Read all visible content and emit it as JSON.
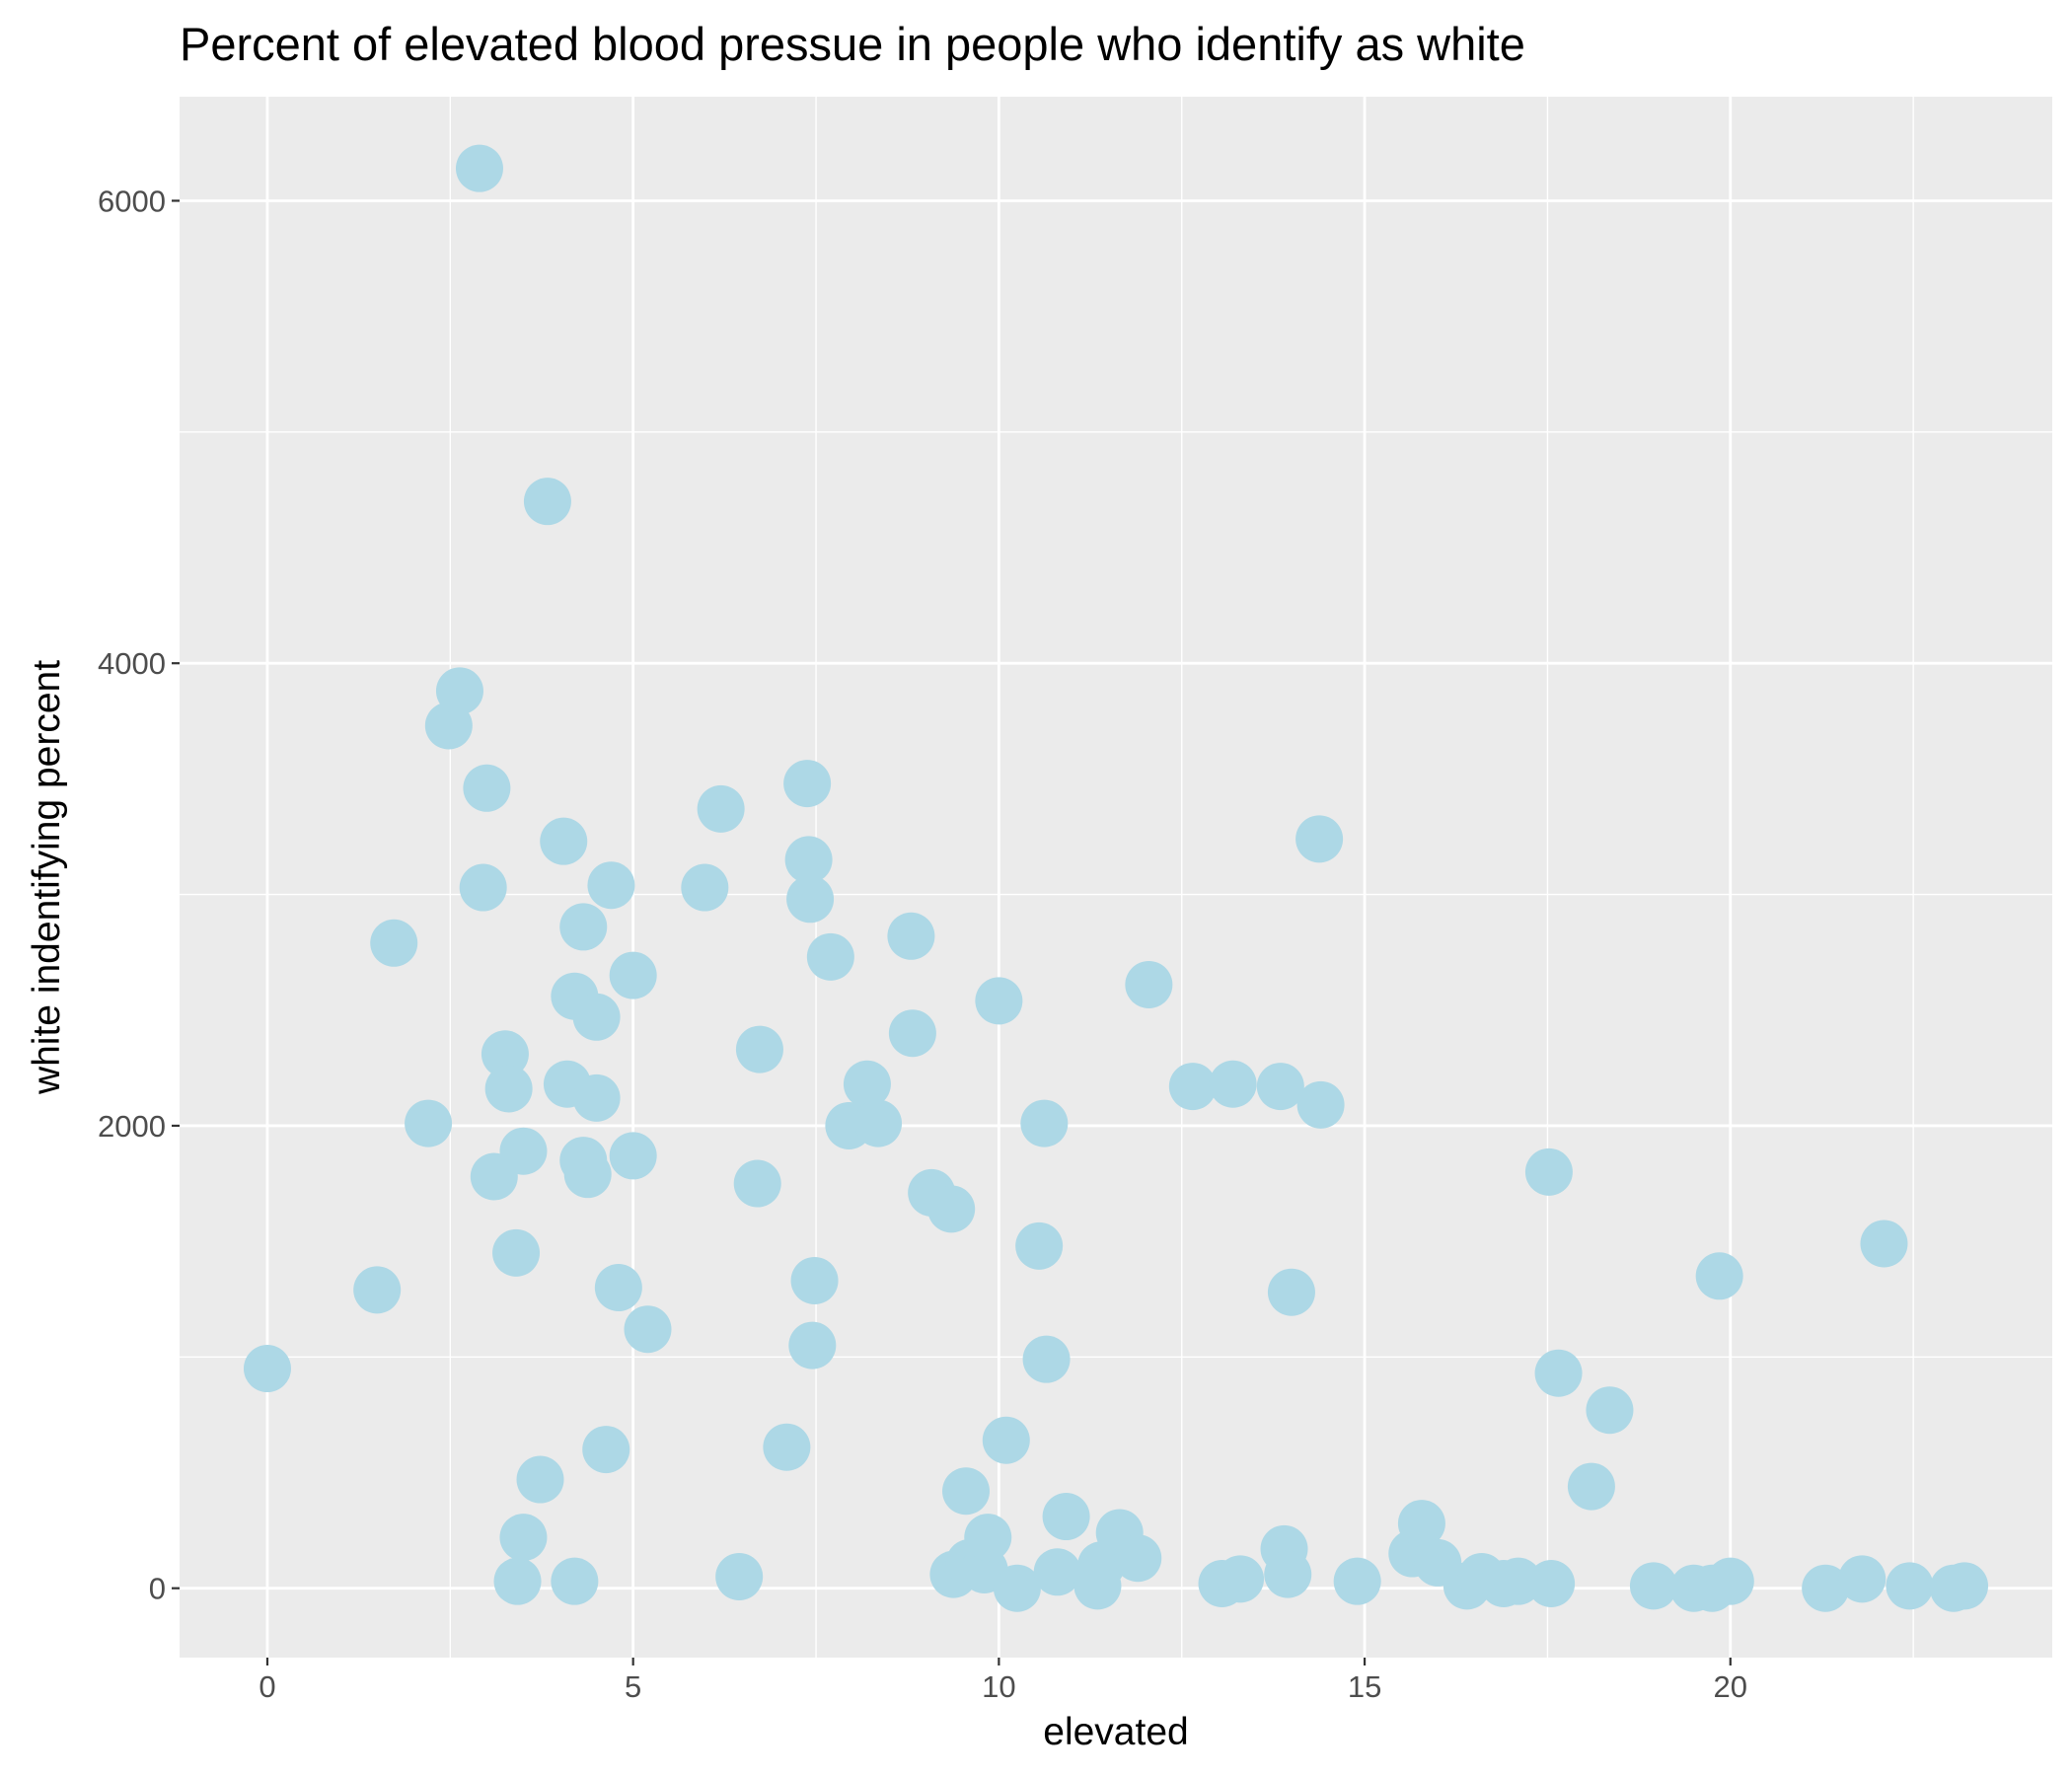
{
  "chart_data": {
    "type": "scatter",
    "title": "Percent of elevated blood pressue in people who identify as white",
    "xlabel": "elevated",
    "ylabel": "white indentifying percent",
    "xlim": [
      -1.2,
      24.4
    ],
    "ylim": [
      -300,
      6450
    ],
    "x_ticks": [
      0,
      5,
      10,
      15,
      20
    ],
    "y_ticks": [
      0,
      2000,
      4000,
      6000
    ],
    "x_tick_labels": [
      "0",
      "5",
      "10",
      "15",
      "20"
    ],
    "y_tick_labels": [
      "0",
      "2000",
      "4000",
      "6000"
    ],
    "grid": true,
    "legend": "none",
    "colors": {
      "panel": "#ebebeb",
      "grid": "#ffffff",
      "point": "#add8e6",
      "tick_text": "#4d4d4d"
    },
    "points": [
      {
        "x": 0.0,
        "y": 950
      },
      {
        "x": 1.5,
        "y": 1290
      },
      {
        "x": 1.73,
        "y": 2790
      },
      {
        "x": 2.2,
        "y": 2010
      },
      {
        "x": 2.48,
        "y": 3730
      },
      {
        "x": 2.63,
        "y": 3880
      },
      {
        "x": 2.9,
        "y": 6140
      },
      {
        "x": 2.95,
        "y": 3030
      },
      {
        "x": 3.0,
        "y": 3460
      },
      {
        "x": 3.1,
        "y": 1780
      },
      {
        "x": 3.25,
        "y": 2310
      },
      {
        "x": 3.3,
        "y": 2160
      },
      {
        "x": 3.4,
        "y": 1450
      },
      {
        "x": 3.42,
        "y": 30
      },
      {
        "x": 3.5,
        "y": 1890
      },
      {
        "x": 3.5,
        "y": 220
      },
      {
        "x": 3.73,
        "y": 470
      },
      {
        "x": 3.83,
        "y": 4700
      },
      {
        "x": 4.05,
        "y": 3230
      },
      {
        "x": 4.1,
        "y": 2180
      },
      {
        "x": 4.2,
        "y": 2560
      },
      {
        "x": 4.2,
        "y": 30
      },
      {
        "x": 4.32,
        "y": 2860
      },
      {
        "x": 4.32,
        "y": 1850
      },
      {
        "x": 4.38,
        "y": 1790
      },
      {
        "x": 4.5,
        "y": 2470
      },
      {
        "x": 4.5,
        "y": 2120
      },
      {
        "x": 4.63,
        "y": 600
      },
      {
        "x": 4.7,
        "y": 3040
      },
      {
        "x": 4.8,
        "y": 1300
      },
      {
        "x": 5.0,
        "y": 2650
      },
      {
        "x": 5.0,
        "y": 1870
      },
      {
        "x": 5.2,
        "y": 1120
      },
      {
        "x": 5.98,
        "y": 3030
      },
      {
        "x": 6.2,
        "y": 3370
      },
      {
        "x": 6.45,
        "y": 50
      },
      {
        "x": 6.7,
        "y": 1750
      },
      {
        "x": 6.73,
        "y": 2330
      },
      {
        "x": 7.1,
        "y": 610
      },
      {
        "x": 7.38,
        "y": 3480
      },
      {
        "x": 7.4,
        "y": 3150
      },
      {
        "x": 7.42,
        "y": 2980
      },
      {
        "x": 7.45,
        "y": 1050
      },
      {
        "x": 7.48,
        "y": 1330
      },
      {
        "x": 7.7,
        "y": 2730
      },
      {
        "x": 7.95,
        "y": 2000
      },
      {
        "x": 8.2,
        "y": 2180
      },
      {
        "x": 8.35,
        "y": 2010
      },
      {
        "x": 8.8,
        "y": 2820
      },
      {
        "x": 8.82,
        "y": 2400
      },
      {
        "x": 9.08,
        "y": 1710
      },
      {
        "x": 9.35,
        "y": 1640
      },
      {
        "x": 9.38,
        "y": 60
      },
      {
        "x": 9.55,
        "y": 420
      },
      {
        "x": 9.6,
        "y": 110
      },
      {
        "x": 9.8,
        "y": 80
      },
      {
        "x": 9.85,
        "y": 220
      },
      {
        "x": 10.0,
        "y": 2540
      },
      {
        "x": 10.1,
        "y": 640
      },
      {
        "x": 10.25,
        "y": 0
      },
      {
        "x": 10.55,
        "y": 1480
      },
      {
        "x": 10.62,
        "y": 2010
      },
      {
        "x": 10.65,
        "y": 990
      },
      {
        "x": 10.8,
        "y": 70
      },
      {
        "x": 10.92,
        "y": 310
      },
      {
        "x": 11.35,
        "y": 10
      },
      {
        "x": 11.4,
        "y": 100
      },
      {
        "x": 11.65,
        "y": 240
      },
      {
        "x": 11.9,
        "y": 130
      },
      {
        "x": 12.05,
        "y": 2610
      },
      {
        "x": 12.65,
        "y": 2170
      },
      {
        "x": 13.05,
        "y": 20
      },
      {
        "x": 13.2,
        "y": 2180
      },
      {
        "x": 13.3,
        "y": 40
      },
      {
        "x": 13.85,
        "y": 2170
      },
      {
        "x": 13.9,
        "y": 170
      },
      {
        "x": 13.95,
        "y": 60
      },
      {
        "x": 14.0,
        "y": 1280
      },
      {
        "x": 14.38,
        "y": 3240
      },
      {
        "x": 14.4,
        "y": 2090
      },
      {
        "x": 14.9,
        "y": 30
      },
      {
        "x": 15.65,
        "y": 150
      },
      {
        "x": 15.78,
        "y": 280
      },
      {
        "x": 16.0,
        "y": 110
      },
      {
        "x": 16.4,
        "y": 10
      },
      {
        "x": 16.6,
        "y": 50
      },
      {
        "x": 16.9,
        "y": 20
      },
      {
        "x": 17.1,
        "y": 30
      },
      {
        "x": 17.52,
        "y": 1800
      },
      {
        "x": 17.55,
        "y": 20
      },
      {
        "x": 17.65,
        "y": 930
      },
      {
        "x": 18.1,
        "y": 440
      },
      {
        "x": 18.35,
        "y": 770
      },
      {
        "x": 18.95,
        "y": 10
      },
      {
        "x": 19.5,
        "y": 0
      },
      {
        "x": 19.75,
        "y": 0
      },
      {
        "x": 19.85,
        "y": 1350
      },
      {
        "x": 20.0,
        "y": 30
      },
      {
        "x": 21.3,
        "y": 0
      },
      {
        "x": 21.8,
        "y": 40
      },
      {
        "x": 22.1,
        "y": 1490
      },
      {
        "x": 22.45,
        "y": 10
      },
      {
        "x": 23.05,
        "y": 0
      },
      {
        "x": 23.2,
        "y": 10
      }
    ]
  }
}
